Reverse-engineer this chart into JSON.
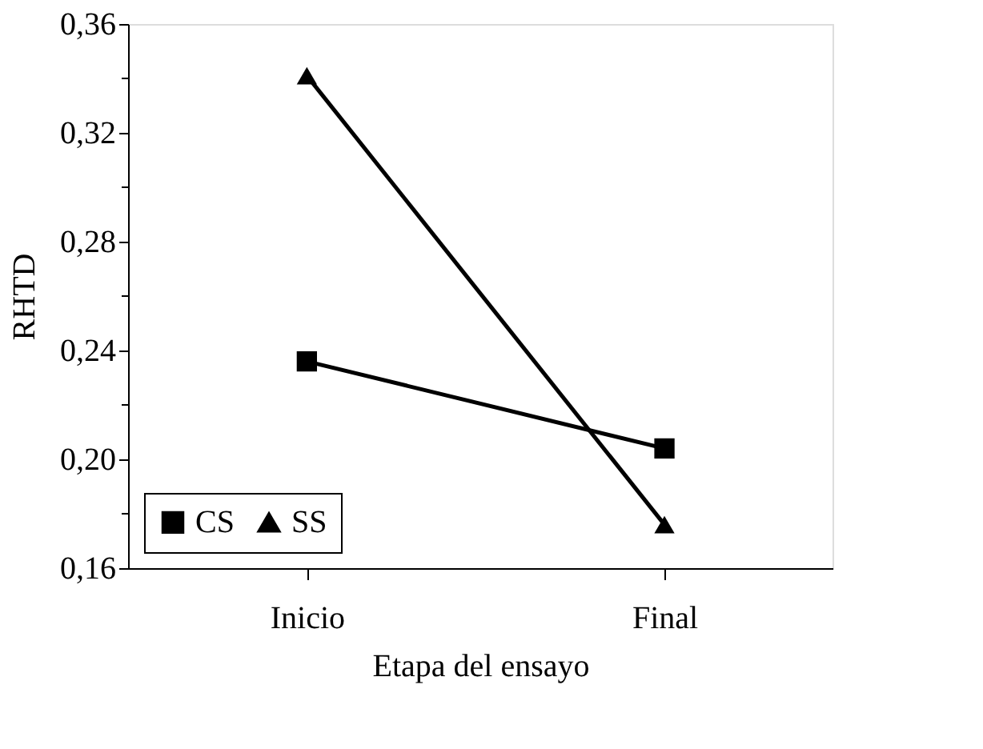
{
  "chart_data": {
    "type": "line",
    "xlabel": "Etapa del ensayo",
    "ylabel": "RHTD",
    "categories": [
      "Inicio",
      "Final"
    ],
    "series": [
      {
        "name": "CS",
        "color": "#000000",
        "values": [
          0.236,
          0.204
        ],
        "marker": "square"
      },
      {
        "name": "SS",
        "color": "#000000",
        "values": [
          0.341,
          0.176
        ],
        "marker": "triangle"
      }
    ],
    "ylim": [
      0.16,
      0.36
    ],
    "yticks": [
      {
        "value": 0.16,
        "label": "0,16"
      },
      {
        "value": 0.18,
        "label": null
      },
      {
        "value": 0.2,
        "label": "0,20"
      },
      {
        "value": 0.22,
        "label": null
      },
      {
        "value": 0.24,
        "label": "0,24"
      },
      {
        "value": 0.26,
        "label": null
      },
      {
        "value": 0.28,
        "label": "0,28"
      },
      {
        "value": 0.3,
        "label": null
      },
      {
        "value": 0.32,
        "label": "0,32"
      },
      {
        "value": 0.34,
        "label": null
      },
      {
        "value": 0.36,
        "label": "0,36"
      }
    ],
    "grid": false,
    "legend": "bottom left",
    "line_style": "solid"
  }
}
